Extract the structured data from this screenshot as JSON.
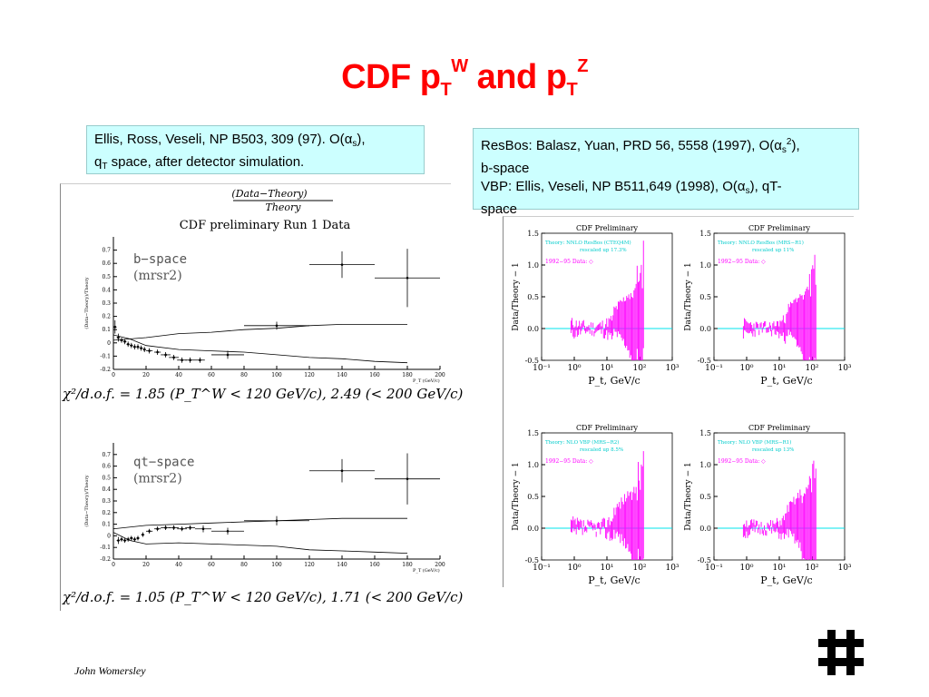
{
  "slide": {
    "title_prefix": "CDF p",
    "title_sub1": "T",
    "title_sup1": "W",
    "title_and": " and p",
    "title_sub2": "T",
    "title_sup2": "Z",
    "footer": "John Womersley",
    "logo_icon": "fermilab-logo-icon"
  },
  "ref_left": {
    "line1a": "Ellis, Ross, Veseli, NP B503, 309 (97). O(",
    "alpha": "α",
    "s": "s",
    "line1b": "),",
    "q": "q",
    "T": "T",
    "line2": " space, after detector simulation."
  },
  "ref_right": {
    "line1a": "ResBos: Balasz, Yuan, PRD 56, 5558 (1997), O(",
    "alpha": "α",
    "s": "s",
    "sup2": "2",
    "line1b": "),",
    "line2": "b-space",
    "line3a": "VBP: Ellis, Veseli, NP B511,649 (1998), O(",
    "line3b": "), qT-",
    "line4": "space"
  },
  "left_figure": {
    "header_num": "(Data−Theory)",
    "header_den": "Theory",
    "run_title": "CDF preliminary Run 1 Data",
    "ylabel": "(Data−Theory)/Theory",
    "xlabel": "P_T (GeV/c)",
    "chi2_top": "χ²/d.o.f. = 1.85 (P_T^W < 120 GeV/c), 2.49 (< 200 GeV/c)",
    "chi2_bottom": "χ²/d.o.f. = 1.05 (P_T^W < 120 GeV/c), 1.71 (< 200 GeV/c)"
  },
  "chart_data": [
    {
      "type": "scatter",
      "label_line1": "b−space",
      "label_line2": "(mrsr2)",
      "xlim": [
        0,
        200
      ],
      "ylim": [
        -0.2,
        0.8
      ],
      "xticks": [
        0,
        20,
        40,
        60,
        80,
        100,
        120,
        140,
        160,
        180,
        200
      ],
      "yticks": [
        -0.2,
        -0.1,
        0,
        0.1,
        0.2,
        0.3,
        0.4,
        0.5,
        0.6,
        0.7
      ],
      "points": [
        {
          "x": 1,
          "y": 0.12,
          "xerr": 1,
          "yerr": 0.05
        },
        {
          "x": 3,
          "y": 0.04,
          "xerr": 1,
          "yerr": 0.03
        },
        {
          "x": 5,
          "y": 0.02,
          "xerr": 1,
          "yerr": 0.02
        },
        {
          "x": 7,
          "y": 0.01,
          "xerr": 1,
          "yerr": 0.02
        },
        {
          "x": 9,
          "y": -0.01,
          "xerr": 1,
          "yerr": 0.02
        },
        {
          "x": 11,
          "y": -0.02,
          "xerr": 1,
          "yerr": 0.02
        },
        {
          "x": 13,
          "y": -0.03,
          "xerr": 1,
          "yerr": 0.02
        },
        {
          "x": 15,
          "y": -0.03,
          "xerr": 1,
          "yerr": 0.02
        },
        {
          "x": 17,
          "y": -0.04,
          "xerr": 1,
          "yerr": 0.02
        },
        {
          "x": 19,
          "y": -0.05,
          "xerr": 1,
          "yerr": 0.02
        },
        {
          "x": 22,
          "y": -0.06,
          "xerr": 2,
          "yerr": 0.02
        },
        {
          "x": 27,
          "y": -0.07,
          "xerr": 2,
          "yerr": 0.02
        },
        {
          "x": 32,
          "y": -0.09,
          "xerr": 3,
          "yerr": 0.02
        },
        {
          "x": 37,
          "y": -0.11,
          "xerr": 3,
          "yerr": 0.02
        },
        {
          "x": 42,
          "y": -0.13,
          "xerr": 3,
          "yerr": 0.02
        },
        {
          "x": 47,
          "y": -0.13,
          "xerr": 3,
          "yerr": 0.02
        },
        {
          "x": 53,
          "y": -0.13,
          "xerr": 3,
          "yerr": 0.02
        },
        {
          "x": 70,
          "y": -0.09,
          "xerr": 10,
          "yerr": 0.03
        },
        {
          "x": 100,
          "y": 0.13,
          "xerr": 20,
          "yerr": 0.03
        },
        {
          "x": 140,
          "y": 0.59,
          "xerr": 20,
          "yerr": 0.1
        },
        {
          "x": 180,
          "y": 0.49,
          "xerr": 20,
          "yerr": 0.22
        }
      ],
      "band_upper": [
        [
          0,
          0.02
        ],
        [
          20,
          0.04
        ],
        [
          40,
          0.07
        ],
        [
          60,
          0.08
        ],
        [
          80,
          0.1
        ],
        [
          100,
          0.11
        ],
        [
          120,
          0.13
        ],
        [
          140,
          0.14
        ],
        [
          160,
          0.14
        ],
        [
          180,
          0.14
        ]
      ],
      "band_lower": [
        [
          0,
          0.06
        ],
        [
          10,
          0.03
        ],
        [
          20,
          -0.02
        ],
        [
          40,
          -0.05
        ],
        [
          60,
          -0.06
        ],
        [
          80,
          -0.07
        ],
        [
          100,
          -0.09
        ],
        [
          120,
          -0.11
        ],
        [
          140,
          -0.12
        ],
        [
          160,
          -0.14
        ],
        [
          180,
          -0.15
        ]
      ]
    },
    {
      "type": "scatter",
      "label_line1": "qt−space",
      "label_line2": "(mrsr2)",
      "xlim": [
        0,
        200
      ],
      "ylim": [
        -0.2,
        0.8
      ],
      "xticks": [
        0,
        20,
        40,
        60,
        80,
        100,
        120,
        140,
        160,
        180,
        200
      ],
      "yticks": [
        -0.2,
        -0.1,
        0,
        0.1,
        0.2,
        0.3,
        0.4,
        0.5,
        0.6,
        0.7
      ],
      "points": [
        {
          "x": 3,
          "y": -0.04,
          "xerr": 1,
          "yerr": 0.03
        },
        {
          "x": 5,
          "y": -0.03,
          "xerr": 1,
          "yerr": 0.02
        },
        {
          "x": 7,
          "y": -0.04,
          "xerr": 1,
          "yerr": 0.02
        },
        {
          "x": 9,
          "y": -0.03,
          "xerr": 1,
          "yerr": 0.02
        },
        {
          "x": 11,
          "y": -0.02,
          "xerr": 1,
          "yerr": 0.02
        },
        {
          "x": 13,
          "y": -0.03,
          "xerr": 1,
          "yerr": 0.02
        },
        {
          "x": 15,
          "y": -0.02,
          "xerr": 1,
          "yerr": 0.02
        },
        {
          "x": 18,
          "y": 0.01,
          "xerr": 1,
          "yerr": 0.02
        },
        {
          "x": 22,
          "y": 0.04,
          "xerr": 2,
          "yerr": 0.02
        },
        {
          "x": 27,
          "y": 0.06,
          "xerr": 2,
          "yerr": 0.02
        },
        {
          "x": 32,
          "y": 0.07,
          "xerr": 3,
          "yerr": 0.02
        },
        {
          "x": 37,
          "y": 0.07,
          "xerr": 3,
          "yerr": 0.02
        },
        {
          "x": 42,
          "y": 0.06,
          "xerr": 3,
          "yerr": 0.02
        },
        {
          "x": 47,
          "y": 0.07,
          "xerr": 3,
          "yerr": 0.02
        },
        {
          "x": 55,
          "y": 0.06,
          "xerr": 5,
          "yerr": 0.03
        },
        {
          "x": 70,
          "y": 0.04,
          "xerr": 10,
          "yerr": 0.03
        },
        {
          "x": 100,
          "y": 0.13,
          "xerr": 20,
          "yerr": 0.04
        },
        {
          "x": 140,
          "y": 0.56,
          "xerr": 20,
          "yerr": 0.1
        },
        {
          "x": 180,
          "y": 0.49,
          "xerr": 20,
          "yerr": 0.22
        }
      ],
      "band_upper": [
        [
          0,
          0.06
        ],
        [
          20,
          0.09
        ],
        [
          40,
          0.1
        ],
        [
          60,
          0.11
        ],
        [
          80,
          0.12
        ],
        [
          100,
          0.13
        ],
        [
          120,
          0.14
        ],
        [
          140,
          0.15
        ],
        [
          160,
          0.15
        ],
        [
          180,
          0.15
        ]
      ],
      "band_lower": [
        [
          0,
          0.03
        ],
        [
          10,
          -0.04
        ],
        [
          20,
          -0.07
        ],
        [
          40,
          -0.06
        ],
        [
          60,
          -0.07
        ],
        [
          80,
          -0.08
        ],
        [
          100,
          -0.09
        ],
        [
          120,
          -0.12
        ],
        [
          140,
          -0.13
        ],
        [
          160,
          -0.14
        ],
        [
          180,
          -0.15
        ]
      ]
    },
    {
      "type": "scatter",
      "panel_title": "CDF Preliminary",
      "legend_line1": "Theory: NNLO ResBos (CTEQ4M)",
      "legend_line2": "rescaled up 17.3%",
      "legend_line3": "1992−95 Data: ◇",
      "ylabel": "Data/Theory − 1",
      "xlabel": "P_t, GeV/c",
      "xscale": "log",
      "xlim": [
        0.1,
        1000
      ],
      "ylim": [
        -0.5,
        1.5
      ],
      "yticks": [
        -0.5,
        0,
        0.5,
        1,
        1.5
      ],
      "xtick_labels": [
        "10⁻¹",
        "10⁰",
        "10¹",
        "10²",
        "10³"
      ],
      "seed": 11,
      "spread": 0.18
    },
    {
      "type": "scatter",
      "panel_title": "CDF Preliminary",
      "legend_line1": "Theory: NNLO ResBos (MRS−R1)",
      "legend_line2": "rescaled up 11%",
      "legend_line3": "1992−95 Data: ◇",
      "ylabel": "Data/Theory − 1",
      "xlabel": "P_t, GeV/c",
      "xscale": "log",
      "xlim": [
        0.1,
        1000
      ],
      "ylim": [
        -0.5,
        1.5
      ],
      "yticks": [
        -0.5,
        0,
        0.5,
        1,
        1.5
      ],
      "xtick_labels": [
        "10⁻¹",
        "10⁰",
        "10¹",
        "10²",
        "10³"
      ],
      "seed": 23,
      "spread": 0.16
    },
    {
      "type": "scatter",
      "panel_title": "CDF Preliminary",
      "legend_line1": "Theory: NLO VBP (MRS−R2)",
      "legend_line2": "rescaled up 8.5%",
      "legend_line3": "1992−95 Data: ◇",
      "ylabel": "Data/Theory − 1",
      "xlabel": "P_t, GeV/c",
      "xscale": "log",
      "xlim": [
        0.1,
        1000
      ],
      "ylim": [
        -0.5,
        1.5
      ],
      "yticks": [
        -0.5,
        0,
        0.5,
        1,
        1.5
      ],
      "xtick_labels": [
        "10⁻¹",
        "10⁰",
        "10¹",
        "10²",
        "10³"
      ],
      "seed": 37,
      "spread": 0.2
    },
    {
      "type": "scatter",
      "panel_title": "CDF Preliminary",
      "legend_line1": "Theory: NLO VBP (MRS−R1)",
      "legend_line2": "rescaled up 13%",
      "legend_line3": "1992−95 Data: ◇",
      "ylabel": "Data/Theory − 1",
      "xlabel": "P_t, GeV/c",
      "xscale": "log",
      "xlim": [
        0.1,
        1000
      ],
      "ylim": [
        -0.5,
        1.5
      ],
      "yticks": [
        -0.5,
        0,
        0.5,
        1,
        1.5
      ],
      "xtick_labels": [
        "10⁻¹",
        "10⁰",
        "10¹",
        "10²",
        "10³"
      ],
      "seed": 51,
      "spread": 0.17
    }
  ],
  "colors": {
    "title": "#ff0000",
    "ref_box": "#ccffff",
    "data_magenta": "#ff00ff",
    "zero_line": "#00e5ee",
    "legend_text": "#00cccc"
  }
}
